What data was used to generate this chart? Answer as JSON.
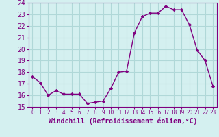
{
  "x": [
    0,
    1,
    2,
    3,
    4,
    5,
    6,
    7,
    8,
    9,
    10,
    11,
    12,
    13,
    14,
    15,
    16,
    17,
    18,
    19,
    20,
    21,
    22,
    23
  ],
  "y": [
    17.6,
    17.1,
    16.0,
    16.4,
    16.1,
    16.1,
    16.1,
    15.3,
    15.4,
    15.5,
    16.6,
    18.0,
    18.1,
    21.4,
    22.8,
    23.1,
    23.1,
    23.7,
    23.4,
    23.4,
    22.1,
    19.9,
    19.0,
    16.8
  ],
  "xlim": [
    -0.5,
    23.5
  ],
  "ylim": [
    15,
    24
  ],
  "yticks": [
    15,
    16,
    17,
    18,
    19,
    20,
    21,
    22,
    23,
    24
  ],
  "xticks": [
    0,
    1,
    2,
    3,
    4,
    5,
    6,
    7,
    8,
    9,
    10,
    11,
    12,
    13,
    14,
    15,
    16,
    17,
    18,
    19,
    20,
    21,
    22,
    23
  ],
  "xlabel": "Windchill (Refroidissement éolien,°C)",
  "line_color": "#800080",
  "marker_color": "#800080",
  "bg_color": "#d4f0f0",
  "grid_color": "#b0d8d8",
  "xlabel_color": "#800080",
  "tick_color": "#800080",
  "xlabel_fontsize": 7,
  "ytick_fontsize": 7,
  "xtick_fontsize": 5.5
}
